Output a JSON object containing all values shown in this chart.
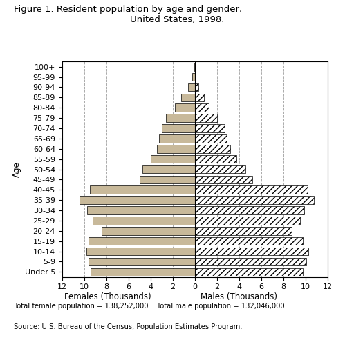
{
  "title_line1": "Figure 1. Resident population by age and gender,",
  "title_line2": "United States, 1998.",
  "age_groups": [
    "100+",
    "95-99",
    "90-94",
    "85-89",
    "80-84",
    "75-79",
    "70-74",
    "65-69",
    "60-64",
    "55-59",
    "50-54",
    "45-49",
    "40-45",
    "35-39",
    "30-34",
    "25-29",
    "20-24",
    "15-19",
    "10-14",
    "5-9",
    "Under 5"
  ],
  "females": [
    0.05,
    0.2,
    0.6,
    1.2,
    1.8,
    2.6,
    3.0,
    3.2,
    3.4,
    4.0,
    4.7,
    5.0,
    9.5,
    10.4,
    9.7,
    9.2,
    8.4,
    9.6,
    9.8,
    9.6,
    9.4
  ],
  "males": [
    0.02,
    0.1,
    0.35,
    0.85,
    1.3,
    2.0,
    2.7,
    2.9,
    3.2,
    3.8,
    4.6,
    5.2,
    10.2,
    10.8,
    9.9,
    9.5,
    8.8,
    9.8,
    10.3,
    10.1,
    9.8
  ],
  "xlabel_female": "Females (Thousands)",
  "xlabel_male": "Males (Thousands)",
  "ylabel": "Age",
  "xlim": 12,
  "female_color": "#c8b99a",
  "male_hatch": "////",
  "male_facecolor": "white",
  "male_edgecolor": "black",
  "female_edgecolor": "black",
  "total_female": "Total female population = 138,252,000",
  "total_male": "Total male population = 132,046,000",
  "source": "Source: U.S. Bureau of the Census, Population Estimates Program.",
  "grid_color": "#aaaaaa",
  "background_color": "white",
  "title_fontsize": 9.5,
  "axis_fontsize": 8.5,
  "tick_fontsize": 8.0
}
